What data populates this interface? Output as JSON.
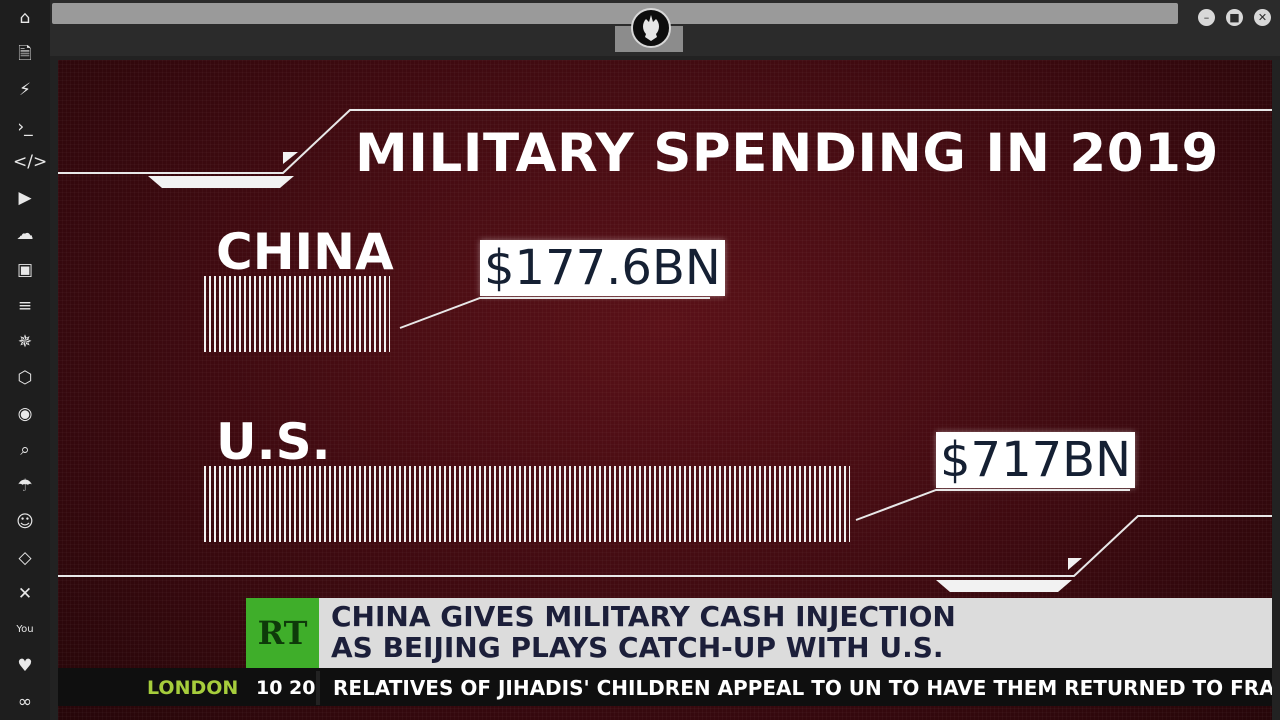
{
  "sidebar": {
    "icons": [
      "home-icon",
      "document-icon",
      "bolt-icon",
      "terminal-icon",
      "code-icon",
      "play-icon",
      "cloud-icon",
      "image-icon",
      "newspaper-icon",
      "rebel-icon",
      "hexagon-icon",
      "globe-icon",
      "search-icon",
      "umbrella-icon",
      "contact-icon",
      "code-tag-icon",
      "expand-icon",
      "youtube-icon",
      "heart-icon",
      "infinity-icon"
    ],
    "glyphs": [
      "⌂",
      "🗎",
      "⚡",
      "›_",
      "</>",
      "▶",
      "☁",
      "▣",
      "≡",
      "✵",
      "⬡",
      "◉",
      "⌕",
      "☂",
      "☺",
      "◇",
      "✕",
      "You",
      "♥",
      "∞"
    ]
  },
  "window": {
    "minimize": "–",
    "maximize": "■",
    "close": "✕"
  },
  "graphic": {
    "headline": "MILITARY SPENDING IN 2019",
    "china_label": "CHINA",
    "china_value": "$177.6BN",
    "us_label": "U.S.",
    "us_value": "$717BN"
  },
  "chart_data": {
    "type": "bar",
    "title": "MILITARY SPENDING IN 2019",
    "categories": [
      "CHINA",
      "U.S."
    ],
    "values": [
      177.6,
      717
    ],
    "data_labels": [
      "$177.6BN",
      "$717BN"
    ],
    "orientation": "horizontal"
  },
  "lower_third": {
    "logo": "RT",
    "line1": "CHINA GIVES MILITARY CASH INJECTION",
    "line2": "AS BEIJING PLAYS CATCH-UP WITH U.S."
  },
  "ticker": {
    "city": "LONDON",
    "time": "10 20",
    "text": "RELATIVES OF JIHADIS' CHILDREN APPEAL TO UN TO HAVE THEM RETURNED TO FRANCE"
  }
}
